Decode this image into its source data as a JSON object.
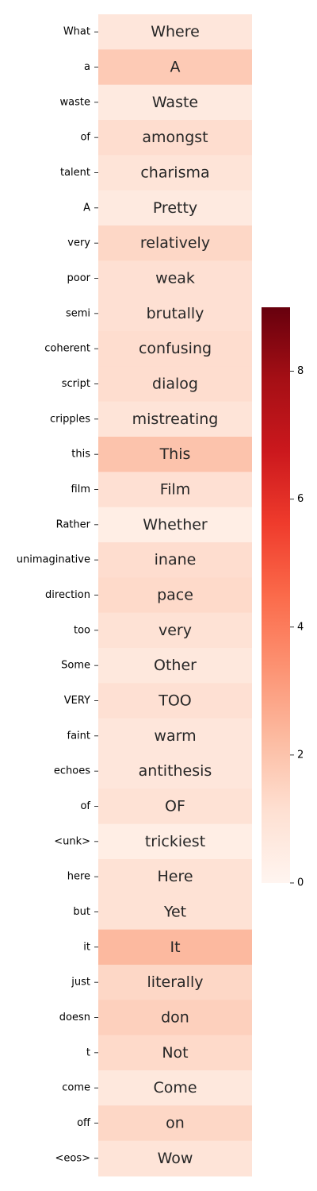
{
  "chart_data": {
    "type": "heatmap",
    "colormap": "Reds",
    "rows": [
      "What",
      "a",
      "waste",
      "of",
      "talent",
      "A",
      "very",
      "poor",
      "semi",
      "coherent",
      "script",
      "cripples",
      "this",
      "film",
      "Rather",
      "unimaginative",
      "direction",
      "too",
      "Some",
      "VERY",
      "faint",
      "echoes",
      "of",
      "<unk>",
      "here",
      "but",
      "it",
      "just",
      "doesn",
      "t",
      "come",
      "off",
      "<eos>"
    ],
    "cell_labels": [
      "Where",
      "A",
      "Waste",
      "amongst",
      "charisma",
      "Pretty",
      "relatively",
      "weak",
      "brutally",
      "confusing",
      "dialog",
      "mistreating",
      "This",
      "Film",
      "Whether",
      "inane",
      "pace",
      "very",
      "Other",
      "TOO",
      "warm",
      "antithesis",
      "OF",
      "trickiest",
      "Here",
      "Yet",
      "It",
      "literally",
      "don",
      "Not",
      "Come",
      "on",
      "Wow"
    ],
    "values": [
      0.8,
      1.8,
      0.6,
      1.2,
      0.9,
      0.6,
      1.4,
      1.1,
      1.1,
      1.2,
      1.2,
      0.9,
      2.0,
      1.1,
      0.4,
      1.2,
      1.3,
      1.0,
      0.7,
      1.1,
      0.8,
      0.8,
      1.0,
      0.4,
      1.0,
      1.0,
      2.3,
      1.4,
      1.6,
      1.3,
      0.7,
      1.4,
      0.9
    ],
    "vmin": 0,
    "vmax": 9,
    "colorbar_ticks": [
      0,
      2,
      4,
      6,
      8
    ]
  }
}
